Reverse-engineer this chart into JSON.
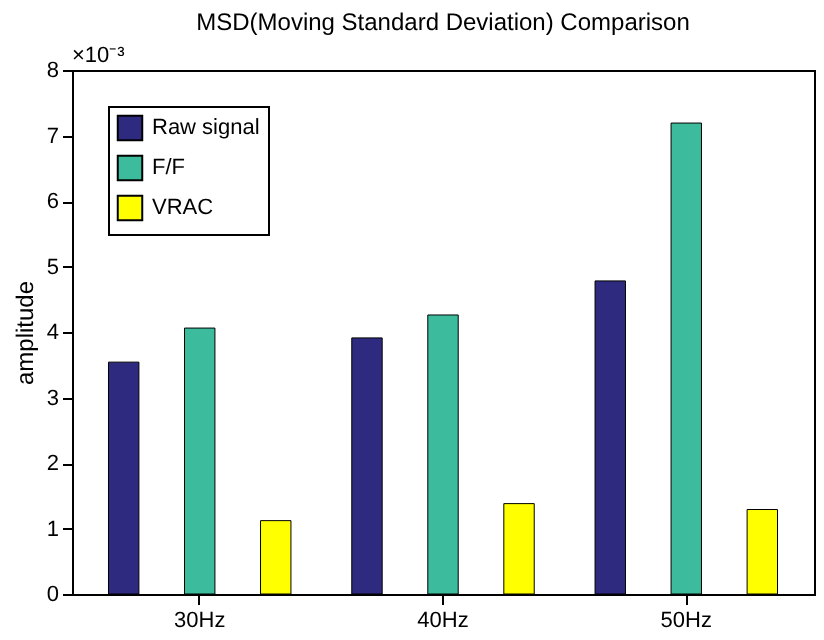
{
  "chart_data": {
    "type": "bar",
    "title": "MSD(Moving Standard Deviation) Comparison",
    "ylabel": "amplitude",
    "annotations": [
      "×10⁻³"
    ],
    "categories": [
      "30Hz",
      "40Hz",
      "50Hz"
    ],
    "series": [
      {
        "name": "Raw signal",
        "color": "#2e2a80",
        "values": [
          3.54,
          3.91,
          4.78
        ]
      },
      {
        "name": "F/F",
        "color": "#3cbc9c",
        "values": [
          4.06,
          4.26,
          7.19
        ]
      },
      {
        "name": "VRAC",
        "color": "#ffff00",
        "values": [
          1.12,
          1.38,
          1.29
        ]
      }
    ],
    "ylim": [
      0,
      8
    ],
    "yticks": [
      0,
      1,
      2,
      3,
      4,
      5,
      6,
      7,
      8
    ],
    "grid": false,
    "legend": "top left"
  }
}
